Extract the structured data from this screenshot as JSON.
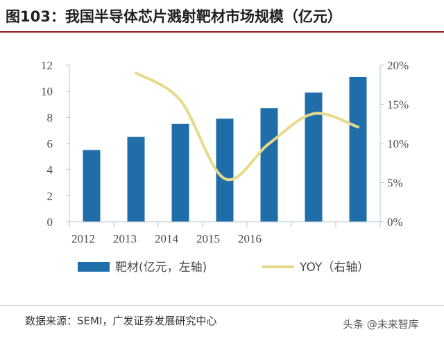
{
  "header": {
    "title": "图103：我国半导体芯片溅射靶材市场规模（亿元）"
  },
  "footer": {
    "source": "数据来源：SEMI，广发证券发展研究中心",
    "watermark": "头条 @未来智库"
  },
  "colors": {
    "bar": "#1f6ea9",
    "line": "#e8d98a",
    "axis": "#b8c6d4",
    "text": "#4a4a4a"
  },
  "chart_data": {
    "type": "bar",
    "categories": [
      "2012",
      "2013",
      "2014",
      "2015",
      "2016",
      "",
      ""
    ],
    "x_tick_labels": [
      "2012",
      "2013",
      "2014",
      "2015",
      "2016"
    ],
    "series": [
      {
        "name": "靶材(亿元，左轴)",
        "type": "bar",
        "axis": "left",
        "values": [
          5.5,
          6.5,
          7.5,
          7.9,
          8.7,
          9.9,
          11.1
        ]
      },
      {
        "name": "YOY（右轴）",
        "type": "line",
        "axis": "right",
        "values": [
          null,
          0.19,
          0.155,
          0.055,
          0.1,
          0.138,
          0.121
        ]
      }
    ],
    "y_left": {
      "min": 0,
      "max": 12,
      "ticks": [
        0,
        2,
        4,
        6,
        8,
        10,
        12
      ]
    },
    "y_right": {
      "min": 0,
      "max": 0.2,
      "ticks": [
        "0%",
        "5%",
        "10%",
        "15%",
        "20%"
      ]
    },
    "legend": {
      "position": "bottom",
      "bar_label": "靶材(亿元，左轴)",
      "line_label": "YOY（右轴）"
    }
  }
}
